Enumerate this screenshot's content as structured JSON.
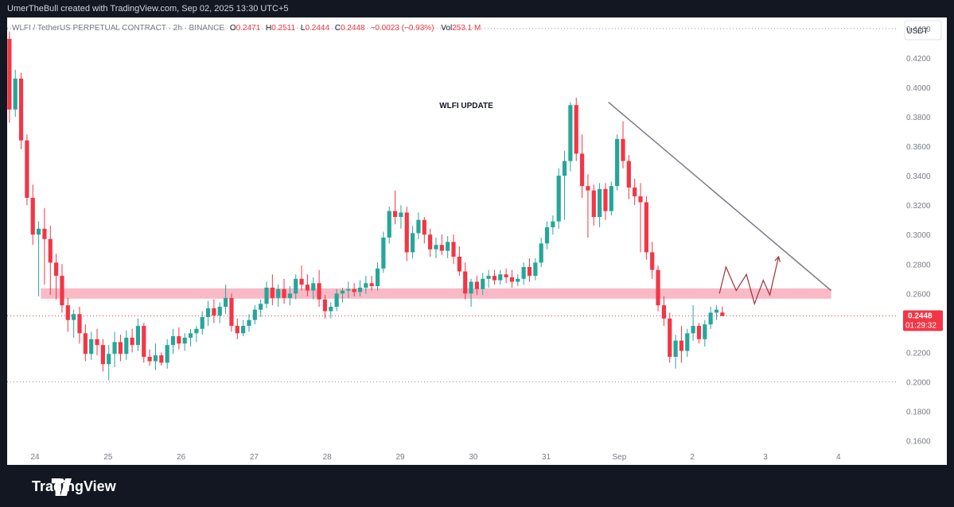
{
  "header": {
    "attribution": "UmerTheBull created with TradingView.com, Sep 02, 2025 13:30 UTC+5"
  },
  "legend": {
    "symbol": "WLFI / TetherUS PERPETUAL CONTRACT · 2h · BINANCE",
    "open_label": "O",
    "open": "0.2471",
    "high_label": "H",
    "high": "0.2511",
    "low_label": "L",
    "low": "0.2444",
    "close_label": "C",
    "close": "0.2448",
    "change": "−0.0023 (−0.93%)",
    "volume_label": "Vol",
    "volume": "253.1 M"
  },
  "currency_button": "USDT",
  "annotation_title": "WLFI UPDATE",
  "price_tag": {
    "price": "0.2448",
    "countdown": "01:29:32"
  },
  "footer": {
    "brand": "TradingView"
  },
  "colors": {
    "up": "#26a69a",
    "down": "#f23645",
    "zone": "#f7a8b8",
    "trendline": "#787b86",
    "projection": "#a0303a"
  },
  "chart_data": {
    "type": "candlestick",
    "y_axis": {
      "range": [
        0.156,
        0.4475
      ],
      "ticks": [
        "0.4400",
        "0.4200",
        "0.4000",
        "0.3800",
        "0.3600",
        "0.3400",
        "0.3200",
        "0.3000",
        "0.2800",
        "0.2600",
        "0.2400",
        "0.2200",
        "0.2000",
        "0.1800",
        "0.1600"
      ],
      "tick_values": [
        0.44,
        0.42,
        0.4,
        0.38,
        0.36,
        0.34,
        0.32,
        0.3,
        0.28,
        0.26,
        0.24,
        0.22,
        0.2,
        0.18,
        0.16
      ]
    },
    "x_axis": {
      "labels": [
        "24",
        "25",
        "26",
        "27",
        "28",
        "29",
        "30",
        "31",
        "Sep",
        "2",
        "3",
        "4"
      ],
      "label_positions": [
        0.0,
        1.0,
        2.0,
        3.0,
        4.0,
        5.0,
        6.0,
        7.0,
        8.0,
        9.0,
        10.0,
        11.0
      ],
      "unit": "days since Aug 24"
    },
    "horizontal_lines": [
      {
        "value": 0.44,
        "style": "dotted"
      },
      {
        "value": 0.2448,
        "style": "dotted-red"
      },
      {
        "value": 0.2,
        "style": "dotted"
      }
    ],
    "support_zone": {
      "from": 0.2565,
      "to": 0.2635,
      "x_start": 0.08,
      "x_end": 10.9
    },
    "trendline": {
      "x1": 7.85,
      "y1": 0.39,
      "x2": 10.9,
      "y2": 0.262
    },
    "projection_path": [
      [
        9.37,
        0.26
      ],
      [
        9.46,
        0.278
      ],
      [
        9.6,
        0.262
      ],
      [
        9.74,
        0.273
      ],
      [
        9.85,
        0.253
      ],
      [
        9.97,
        0.269
      ],
      [
        10.06,
        0.259
      ],
      [
        10.18,
        0.285
      ]
    ],
    "candles": [
      {
        "t": -0.35,
        "o": 0.433,
        "h": 0.438,
        "l": 0.376,
        "c": 0.385
      },
      {
        "t": -0.27,
        "o": 0.385,
        "h": 0.412,
        "l": 0.38,
        "c": 0.406
      },
      {
        "t": -0.19,
        "o": 0.406,
        "h": 0.41,
        "l": 0.358,
        "c": 0.364
      },
      {
        "t": -0.11,
        "o": 0.364,
        "h": 0.368,
        "l": 0.32,
        "c": 0.325
      },
      {
        "t": -0.03,
        "o": 0.325,
        "h": 0.334,
        "l": 0.293,
        "c": 0.3
      },
      {
        "t": 0.05,
        "o": 0.3,
        "h": 0.309,
        "l": 0.258,
        "c": 0.304
      },
      {
        "t": 0.13,
        "o": 0.304,
        "h": 0.318,
        "l": 0.266,
        "c": 0.297
      },
      {
        "t": 0.21,
        "o": 0.297,
        "h": 0.306,
        "l": 0.259,
        "c": 0.281
      },
      {
        "t": 0.29,
        "o": 0.281,
        "h": 0.287,
        "l": 0.256,
        "c": 0.272
      },
      {
        "t": 0.37,
        "o": 0.272,
        "h": 0.28,
        "l": 0.247,
        "c": 0.252
      },
      {
        "t": 0.45,
        "o": 0.252,
        "h": 0.257,
        "l": 0.234,
        "c": 0.242
      },
      {
        "t": 0.53,
        "o": 0.242,
        "h": 0.249,
        "l": 0.23,
        "c": 0.246
      },
      {
        "t": 0.61,
        "o": 0.246,
        "h": 0.251,
        "l": 0.226,
        "c": 0.233
      },
      {
        "t": 0.69,
        "o": 0.233,
        "h": 0.239,
        "l": 0.214,
        "c": 0.219
      },
      {
        "t": 0.77,
        "o": 0.219,
        "h": 0.234,
        "l": 0.215,
        "c": 0.229
      },
      {
        "t": 0.85,
        "o": 0.229,
        "h": 0.236,
        "l": 0.218,
        "c": 0.225
      },
      {
        "t": 0.93,
        "o": 0.225,
        "h": 0.229,
        "l": 0.207,
        "c": 0.212
      },
      {
        "t": 1.01,
        "o": 0.212,
        "h": 0.225,
        "l": 0.201,
        "c": 0.219
      },
      {
        "t": 1.09,
        "o": 0.219,
        "h": 0.234,
        "l": 0.21,
        "c": 0.227
      },
      {
        "t": 1.17,
        "o": 0.227,
        "h": 0.232,
        "l": 0.214,
        "c": 0.219
      },
      {
        "t": 1.25,
        "o": 0.219,
        "h": 0.235,
        "l": 0.215,
        "c": 0.23
      },
      {
        "t": 1.33,
        "o": 0.23,
        "h": 0.236,
        "l": 0.22,
        "c": 0.225
      },
      {
        "t": 1.41,
        "o": 0.225,
        "h": 0.243,
        "l": 0.221,
        "c": 0.238
      },
      {
        "t": 1.49,
        "o": 0.238,
        "h": 0.24,
        "l": 0.213,
        "c": 0.217
      },
      {
        "t": 1.57,
        "o": 0.217,
        "h": 0.222,
        "l": 0.211,
        "c": 0.214
      },
      {
        "t": 1.65,
        "o": 0.214,
        "h": 0.226,
        "l": 0.208,
        "c": 0.218
      },
      {
        "t": 1.73,
        "o": 0.218,
        "h": 0.22,
        "l": 0.211,
        "c": 0.213
      },
      {
        "t": 1.81,
        "o": 0.213,
        "h": 0.229,
        "l": 0.209,
        "c": 0.225
      },
      {
        "t": 1.89,
        "o": 0.225,
        "h": 0.236,
        "l": 0.219,
        "c": 0.231
      },
      {
        "t": 1.97,
        "o": 0.231,
        "h": 0.237,
        "l": 0.222,
        "c": 0.226
      },
      {
        "t": 2.05,
        "o": 0.226,
        "h": 0.233,
        "l": 0.221,
        "c": 0.23
      },
      {
        "t": 2.13,
        "o": 0.23,
        "h": 0.236,
        "l": 0.224,
        "c": 0.233
      },
      {
        "t": 2.21,
        "o": 0.233,
        "h": 0.238,
        "l": 0.227,
        "c": 0.236
      },
      {
        "t": 2.29,
        "o": 0.236,
        "h": 0.248,
        "l": 0.232,
        "c": 0.244
      },
      {
        "t": 2.37,
        "o": 0.244,
        "h": 0.255,
        "l": 0.238,
        "c": 0.25
      },
      {
        "t": 2.45,
        "o": 0.25,
        "h": 0.256,
        "l": 0.24,
        "c": 0.245
      },
      {
        "t": 2.53,
        "o": 0.245,
        "h": 0.254,
        "l": 0.24,
        "c": 0.251
      },
      {
        "t": 2.61,
        "o": 0.251,
        "h": 0.266,
        "l": 0.246,
        "c": 0.257
      },
      {
        "t": 2.69,
        "o": 0.257,
        "h": 0.26,
        "l": 0.234,
        "c": 0.238
      },
      {
        "t": 2.77,
        "o": 0.238,
        "h": 0.243,
        "l": 0.229,
        "c": 0.233
      },
      {
        "t": 2.85,
        "o": 0.233,
        "h": 0.242,
        "l": 0.231,
        "c": 0.238
      },
      {
        "t": 2.93,
        "o": 0.238,
        "h": 0.246,
        "l": 0.234,
        "c": 0.242
      },
      {
        "t": 3.01,
        "o": 0.242,
        "h": 0.252,
        "l": 0.239,
        "c": 0.249
      },
      {
        "t": 3.09,
        "o": 0.249,
        "h": 0.256,
        "l": 0.244,
        "c": 0.253
      },
      {
        "t": 3.17,
        "o": 0.253,
        "h": 0.268,
        "l": 0.25,
        "c": 0.264
      },
      {
        "t": 3.25,
        "o": 0.264,
        "h": 0.273,
        "l": 0.252,
        "c": 0.257
      },
      {
        "t": 3.33,
        "o": 0.257,
        "h": 0.266,
        "l": 0.251,
        "c": 0.263
      },
      {
        "t": 3.41,
        "o": 0.263,
        "h": 0.27,
        "l": 0.253,
        "c": 0.257
      },
      {
        "t": 3.49,
        "o": 0.257,
        "h": 0.265,
        "l": 0.252,
        "c": 0.26
      },
      {
        "t": 3.57,
        "o": 0.26,
        "h": 0.273,
        "l": 0.256,
        "c": 0.27
      },
      {
        "t": 3.65,
        "o": 0.27,
        "h": 0.279,
        "l": 0.262,
        "c": 0.266
      },
      {
        "t": 3.73,
        "o": 0.266,
        "h": 0.273,
        "l": 0.258,
        "c": 0.262
      },
      {
        "t": 3.81,
        "o": 0.262,
        "h": 0.271,
        "l": 0.256,
        "c": 0.267
      },
      {
        "t": 3.89,
        "o": 0.267,
        "h": 0.276,
        "l": 0.251,
        "c": 0.256
      },
      {
        "t": 3.97,
        "o": 0.256,
        "h": 0.259,
        "l": 0.243,
        "c": 0.248
      },
      {
        "t": 4.05,
        "o": 0.248,
        "h": 0.254,
        "l": 0.243,
        "c": 0.251
      },
      {
        "t": 4.13,
        "o": 0.251,
        "h": 0.263,
        "l": 0.248,
        "c": 0.26
      },
      {
        "t": 4.21,
        "o": 0.26,
        "h": 0.264,
        "l": 0.254,
        "c": 0.262
      },
      {
        "t": 4.29,
        "o": 0.262,
        "h": 0.268,
        "l": 0.257,
        "c": 0.263
      },
      {
        "t": 4.37,
        "o": 0.263,
        "h": 0.267,
        "l": 0.258,
        "c": 0.261
      },
      {
        "t": 4.45,
        "o": 0.261,
        "h": 0.269,
        "l": 0.258,
        "c": 0.264
      },
      {
        "t": 4.53,
        "o": 0.264,
        "h": 0.272,
        "l": 0.26,
        "c": 0.267
      },
      {
        "t": 4.61,
        "o": 0.267,
        "h": 0.272,
        "l": 0.262,
        "c": 0.265
      },
      {
        "t": 4.69,
        "o": 0.265,
        "h": 0.281,
        "l": 0.262,
        "c": 0.277
      },
      {
        "t": 4.77,
        "o": 0.277,
        "h": 0.302,
        "l": 0.274,
        "c": 0.298
      },
      {
        "t": 4.85,
        "o": 0.298,
        "h": 0.319,
        "l": 0.294,
        "c": 0.316
      },
      {
        "t": 4.93,
        "o": 0.316,
        "h": 0.33,
        "l": 0.307,
        "c": 0.312
      },
      {
        "t": 5.01,
        "o": 0.312,
        "h": 0.32,
        "l": 0.304,
        "c": 0.315
      },
      {
        "t": 5.09,
        "o": 0.315,
        "h": 0.319,
        "l": 0.282,
        "c": 0.288
      },
      {
        "t": 5.17,
        "o": 0.288,
        "h": 0.306,
        "l": 0.284,
        "c": 0.301
      },
      {
        "t": 5.25,
        "o": 0.301,
        "h": 0.315,
        "l": 0.297,
        "c": 0.31
      },
      {
        "t": 5.33,
        "o": 0.31,
        "h": 0.312,
        "l": 0.294,
        "c": 0.3
      },
      {
        "t": 5.41,
        "o": 0.3,
        "h": 0.304,
        "l": 0.285,
        "c": 0.29
      },
      {
        "t": 5.49,
        "o": 0.29,
        "h": 0.298,
        "l": 0.284,
        "c": 0.293
      },
      {
        "t": 5.57,
        "o": 0.293,
        "h": 0.3,
        "l": 0.286,
        "c": 0.289
      },
      {
        "t": 5.65,
        "o": 0.289,
        "h": 0.299,
        "l": 0.284,
        "c": 0.295
      },
      {
        "t": 5.73,
        "o": 0.295,
        "h": 0.3,
        "l": 0.28,
        "c": 0.285
      },
      {
        "t": 5.81,
        "o": 0.285,
        "h": 0.292,
        "l": 0.272,
        "c": 0.275
      },
      {
        "t": 5.89,
        "o": 0.275,
        "h": 0.281,
        "l": 0.256,
        "c": 0.26
      },
      {
        "t": 5.97,
        "o": 0.26,
        "h": 0.27,
        "l": 0.251,
        "c": 0.268
      },
      {
        "t": 6.05,
        "o": 0.268,
        "h": 0.272,
        "l": 0.259,
        "c": 0.263
      },
      {
        "t": 6.13,
        "o": 0.263,
        "h": 0.274,
        "l": 0.259,
        "c": 0.27
      },
      {
        "t": 6.21,
        "o": 0.27,
        "h": 0.276,
        "l": 0.264,
        "c": 0.272
      },
      {
        "t": 6.29,
        "o": 0.272,
        "h": 0.276,
        "l": 0.266,
        "c": 0.269
      },
      {
        "t": 6.37,
        "o": 0.269,
        "h": 0.276,
        "l": 0.266,
        "c": 0.273
      },
      {
        "t": 6.45,
        "o": 0.273,
        "h": 0.277,
        "l": 0.267,
        "c": 0.271
      },
      {
        "t": 6.53,
        "o": 0.271,
        "h": 0.276,
        "l": 0.264,
        "c": 0.268
      },
      {
        "t": 6.61,
        "o": 0.268,
        "h": 0.273,
        "l": 0.265,
        "c": 0.27
      },
      {
        "t": 6.69,
        "o": 0.27,
        "h": 0.281,
        "l": 0.266,
        "c": 0.278
      },
      {
        "t": 6.77,
        "o": 0.278,
        "h": 0.284,
        "l": 0.268,
        "c": 0.272
      },
      {
        "t": 6.85,
        "o": 0.272,
        "h": 0.284,
        "l": 0.269,
        "c": 0.281
      },
      {
        "t": 6.93,
        "o": 0.281,
        "h": 0.298,
        "l": 0.278,
        "c": 0.294
      },
      {
        "t": 7.01,
        "o": 0.294,
        "h": 0.309,
        "l": 0.29,
        "c": 0.305
      },
      {
        "t": 7.09,
        "o": 0.305,
        "h": 0.313,
        "l": 0.3,
        "c": 0.309
      },
      {
        "t": 7.17,
        "o": 0.309,
        "h": 0.345,
        "l": 0.304,
        "c": 0.34
      },
      {
        "t": 7.25,
        "o": 0.34,
        "h": 0.357,
        "l": 0.31,
        "c": 0.35
      },
      {
        "t": 7.33,
        "o": 0.35,
        "h": 0.39,
        "l": 0.343,
        "c": 0.388
      },
      {
        "t": 7.41,
        "o": 0.388,
        "h": 0.393,
        "l": 0.35,
        "c": 0.355
      },
      {
        "t": 7.49,
        "o": 0.355,
        "h": 0.368,
        "l": 0.325,
        "c": 0.333
      },
      {
        "t": 7.57,
        "o": 0.333,
        "h": 0.341,
        "l": 0.298,
        "c": 0.33
      },
      {
        "t": 7.65,
        "o": 0.33,
        "h": 0.334,
        "l": 0.306,
        "c": 0.312
      },
      {
        "t": 7.73,
        "o": 0.312,
        "h": 0.335,
        "l": 0.305,
        "c": 0.331
      },
      {
        "t": 7.81,
        "o": 0.331,
        "h": 0.335,
        "l": 0.31,
        "c": 0.316
      },
      {
        "t": 7.89,
        "o": 0.316,
        "h": 0.336,
        "l": 0.313,
        "c": 0.333
      },
      {
        "t": 7.97,
        "o": 0.333,
        "h": 0.368,
        "l": 0.33,
        "c": 0.365
      },
      {
        "t": 8.05,
        "o": 0.365,
        "h": 0.377,
        "l": 0.345,
        "c": 0.35
      },
      {
        "t": 8.13,
        "o": 0.35,
        "h": 0.354,
        "l": 0.324,
        "c": 0.332
      },
      {
        "t": 8.21,
        "o": 0.332,
        "h": 0.338,
        "l": 0.32,
        "c": 0.326
      },
      {
        "t": 8.29,
        "o": 0.326,
        "h": 0.335,
        "l": 0.288,
        "c": 0.322
      },
      {
        "t": 8.37,
        "o": 0.322,
        "h": 0.326,
        "l": 0.283,
        "c": 0.288
      },
      {
        "t": 8.45,
        "o": 0.288,
        "h": 0.295,
        "l": 0.27,
        "c": 0.276
      },
      {
        "t": 8.53,
        "o": 0.276,
        "h": 0.279,
        "l": 0.248,
        "c": 0.252
      },
      {
        "t": 8.61,
        "o": 0.252,
        "h": 0.258,
        "l": 0.238,
        "c": 0.243
      },
      {
        "t": 8.69,
        "o": 0.243,
        "h": 0.247,
        "l": 0.213,
        "c": 0.217
      },
      {
        "t": 8.77,
        "o": 0.217,
        "h": 0.232,
        "l": 0.209,
        "c": 0.228
      },
      {
        "t": 8.85,
        "o": 0.228,
        "h": 0.238,
        "l": 0.213,
        "c": 0.221
      },
      {
        "t": 8.93,
        "o": 0.221,
        "h": 0.236,
        "l": 0.217,
        "c": 0.233
      },
      {
        "t": 9.01,
        "o": 0.233,
        "h": 0.252,
        "l": 0.228,
        "c": 0.238
      },
      {
        "t": 9.09,
        "o": 0.238,
        "h": 0.24,
        "l": 0.226,
        "c": 0.229
      },
      {
        "t": 9.17,
        "o": 0.229,
        "h": 0.242,
        "l": 0.224,
        "c": 0.239
      },
      {
        "t": 9.25,
        "o": 0.239,
        "h": 0.251,
        "l": 0.236,
        "c": 0.247
      },
      {
        "t": 9.33,
        "o": 0.247,
        "h": 0.252,
        "l": 0.242,
        "c": 0.249
      },
      {
        "t": 9.41,
        "o": 0.2471,
        "h": 0.2511,
        "l": 0.2444,
        "c": 0.2448
      }
    ]
  }
}
